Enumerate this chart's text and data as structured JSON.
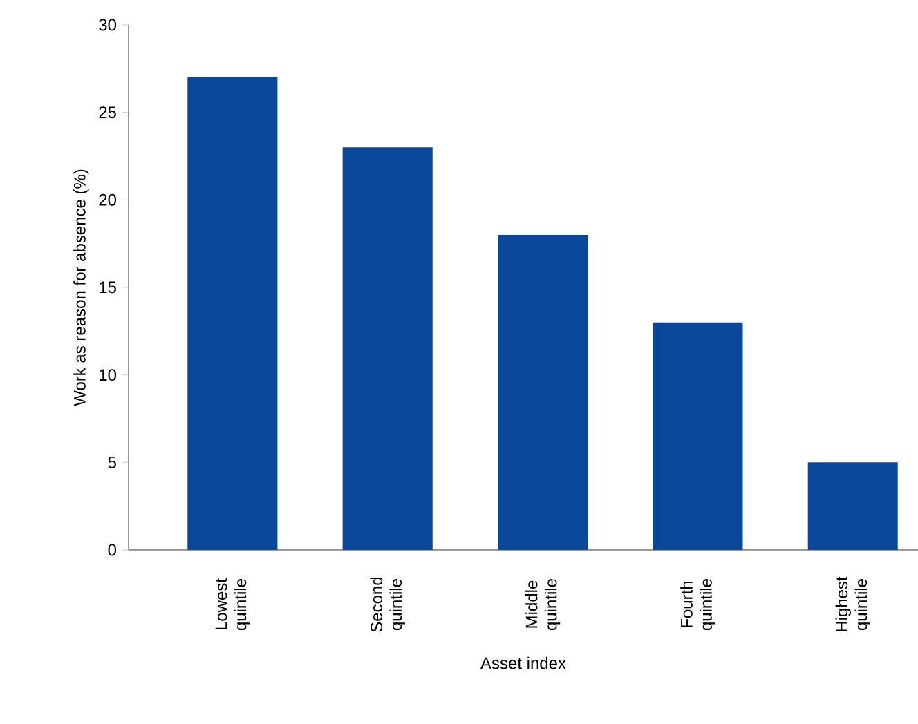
{
  "chart_data": {
    "type": "bar",
    "xlabel": "Asset index",
    "ylabel": "Work as reason for absence (%)",
    "categories": [
      "Lowest quintile",
      "Second quintile",
      "Middle quintile",
      "Fourth quintile",
      "Highest quintile"
    ],
    "values": [
      27,
      23,
      18,
      13,
      5
    ],
    "color": "#08479a",
    "ylim": [
      0,
      30
    ],
    "yticks": [
      0,
      5,
      10,
      15,
      20,
      25,
      30
    ]
  }
}
